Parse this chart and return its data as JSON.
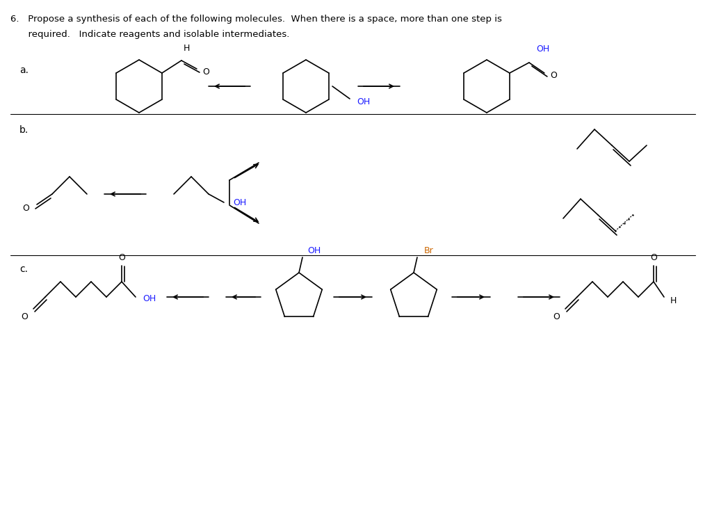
{
  "bg_color": "#ffffff",
  "text_color": "#000000",
  "title_line1": "6.   Propose a synthesis of each of the following molecules.  When there is a space, more than one step is",
  "title_line2": "      required.   Indicate reagents and isolable intermediates.",
  "label_a": "a.",
  "label_b": "b.",
  "label_c": "c.",
  "oh_color": "#1a1aff",
  "br_color": "#cc6600"
}
